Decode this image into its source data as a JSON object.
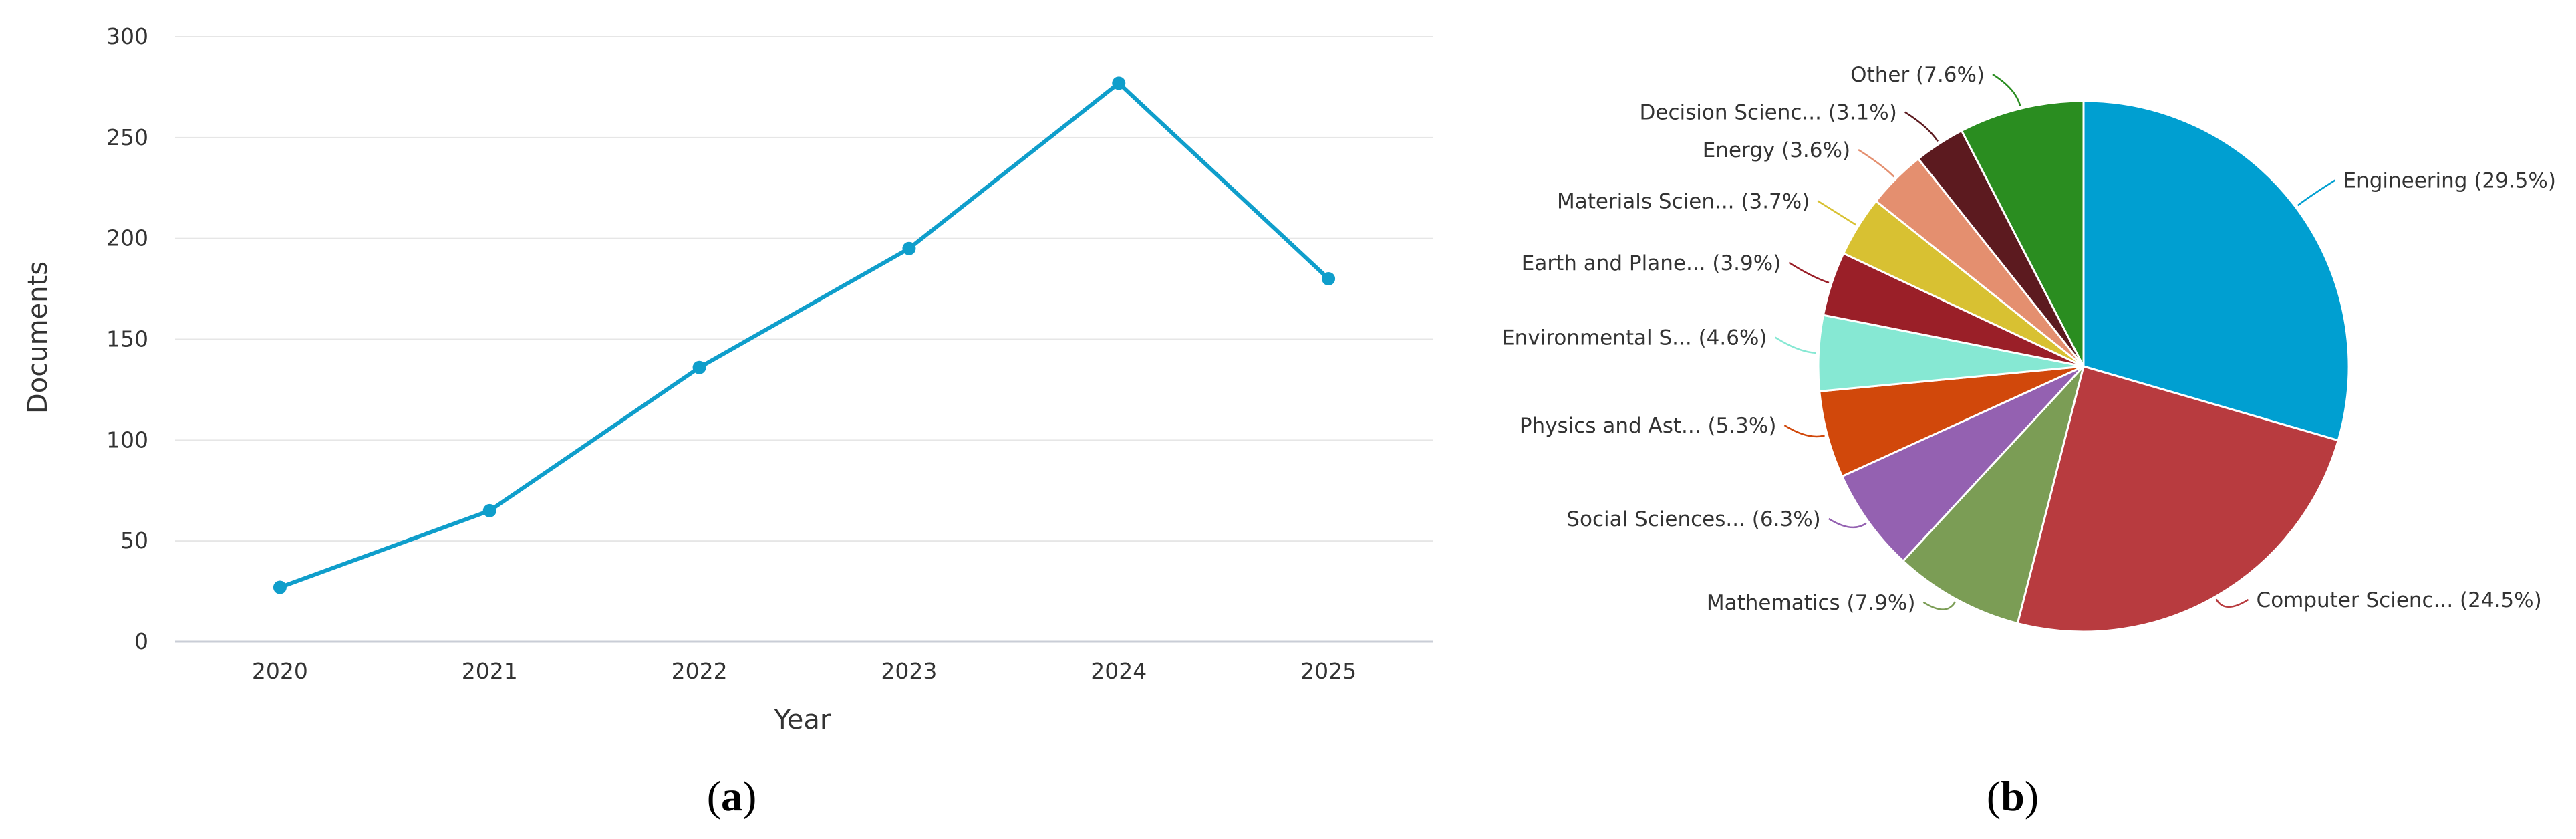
{
  "chart_data": [
    {
      "type": "line",
      "panel_label": "a",
      "xlabel": "Year",
      "ylabel": "Documents",
      "categories": [
        "2020",
        "2021",
        "2022",
        "2023",
        "2024",
        "2025"
      ],
      "series": [
        {
          "values": [
            27,
            65,
            136,
            195,
            277,
            180
          ]
        }
      ],
      "yticks": [
        "0",
        "50",
        "100",
        "150",
        "200",
        "250",
        "300"
      ],
      "ylim": [
        0,
        300
      ],
      "grid": true,
      "color": "#0f9ecb"
    },
    {
      "type": "pie",
      "panel_label": "b",
      "slices": [
        {
          "label": "Engineering (29.5%)",
          "value": 29.5,
          "color": "#009fd1"
        },
        {
          "label": "Computer Scienc... (24.5%)",
          "value": 24.5,
          "color": "#b83b3f"
        },
        {
          "label": "Mathematics (7.9%)",
          "value": 7.9,
          "color": "#7b9d55"
        },
        {
          "label": "Social Sciences... (6.3%)",
          "value": 6.3,
          "color": "#9461b1"
        },
        {
          "label": "Physics and Ast... (5.3%)",
          "value": 5.3,
          "color": "#d1480b"
        },
        {
          "label": "Environmental S... (4.6%)",
          "value": 4.6,
          "color": "#86e8d3"
        },
        {
          "label": "Earth and Plane... (3.9%)",
          "value": 3.9,
          "color": "#9a1f28"
        },
        {
          "label": "Materials Scien... (3.7%)",
          "value": 3.7,
          "color": "#d8c132"
        },
        {
          "label": "Energy (3.6%)",
          "value": 3.6,
          "color": "#e48f6f"
        },
        {
          "label": "Decision Scienc... (3.1%)",
          "value": 3.1,
          "color": "#5c1a1f"
        },
        {
          "label": "Other (7.6%)",
          "value": 7.6,
          "color": "#2a8d20"
        }
      ]
    }
  ]
}
